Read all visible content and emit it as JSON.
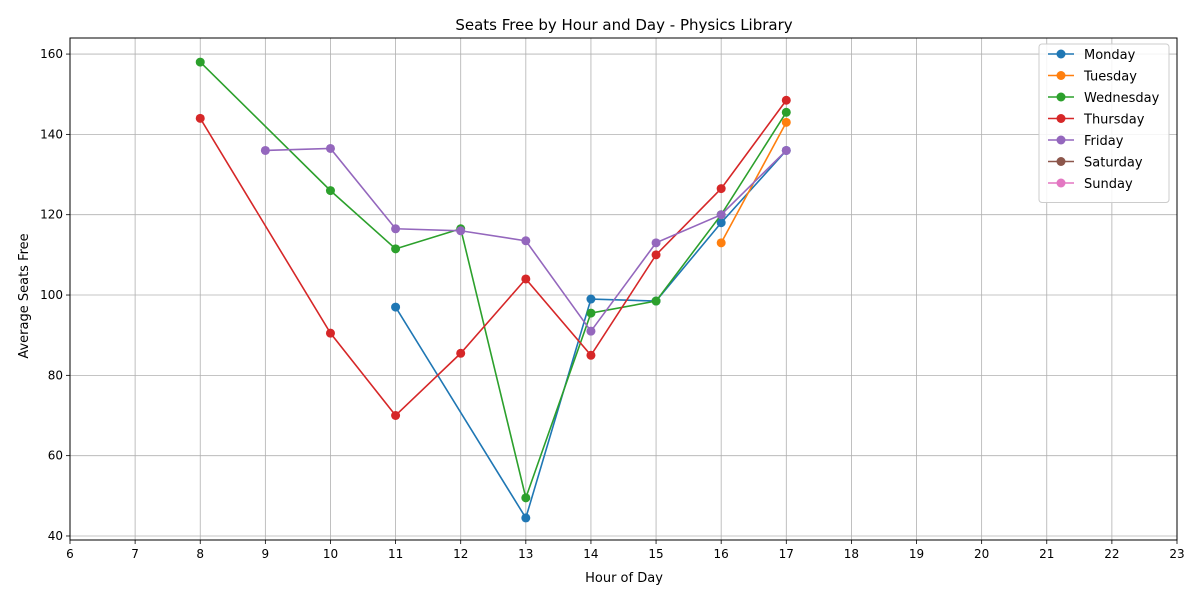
{
  "chart_data": {
    "type": "line",
    "title": "Seats Free by Hour and Day - Physics Library",
    "xlabel": "Hour of Day",
    "ylabel": "Average Seats Free",
    "xlim": [
      6,
      23
    ],
    "ylim": [
      39,
      164
    ],
    "xticks": [
      6,
      7,
      8,
      9,
      10,
      11,
      12,
      13,
      14,
      15,
      16,
      17,
      18,
      19,
      20,
      21,
      22,
      23
    ],
    "yticks": [
      40,
      60,
      80,
      100,
      120,
      140,
      160
    ],
    "grid": true,
    "legend_position": "top-right",
    "series": [
      {
        "name": "Monday",
        "color": "#1f77b4",
        "points": [
          [
            11,
            97
          ],
          [
            13,
            44.5
          ],
          [
            14,
            99
          ],
          [
            15,
            98.5
          ],
          [
            16,
            118
          ],
          [
            17,
            136
          ]
        ]
      },
      {
        "name": "Tuesday",
        "color": "#ff7f0e",
        "points": [
          [
            16,
            113
          ],
          [
            17,
            143
          ]
        ]
      },
      {
        "name": "Wednesday",
        "color": "#2ca02c",
        "points": [
          [
            8,
            158
          ],
          [
            10,
            126
          ],
          [
            11,
            111.5
          ],
          [
            12,
            116.5
          ],
          [
            13,
            49.5
          ],
          [
            14,
            95.5
          ],
          [
            15,
            98.5
          ],
          [
            16,
            120
          ],
          [
            17,
            145.5
          ]
        ]
      },
      {
        "name": "Thursday",
        "color": "#d62728",
        "points": [
          [
            8,
            144
          ],
          [
            10,
            90.5
          ],
          [
            11,
            70
          ],
          [
            12,
            85.5
          ],
          [
            13,
            104
          ],
          [
            14,
            85
          ],
          [
            15,
            110
          ],
          [
            16,
            126.5
          ],
          [
            17,
            148.5
          ]
        ]
      },
      {
        "name": "Friday",
        "color": "#9467bd",
        "points": [
          [
            9,
            136
          ],
          [
            10,
            136.5
          ],
          [
            11,
            116.5
          ],
          [
            12,
            116
          ],
          [
            13,
            113.5
          ],
          [
            14,
            91
          ],
          [
            15,
            113
          ],
          [
            16,
            120
          ],
          [
            17,
            136
          ]
        ]
      },
      {
        "name": "Saturday",
        "color": "#8c564b",
        "points": []
      },
      {
        "name": "Sunday",
        "color": "#e377c2",
        "points": []
      }
    ]
  }
}
